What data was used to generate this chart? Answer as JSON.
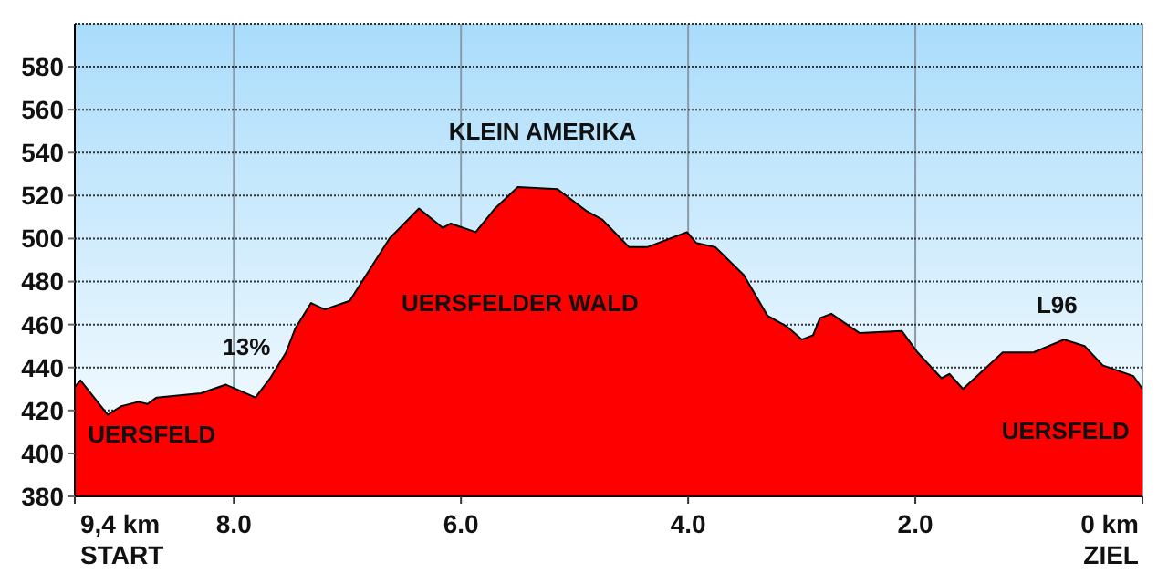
{
  "chart_data": {
    "type": "area",
    "x": [
      9.4,
      9.35,
      9.11,
      8.99,
      8.84,
      8.76,
      8.68,
      8.29,
      8.07,
      7.81,
      7.68,
      7.54,
      7.46,
      7.32,
      7.2,
      6.98,
      6.63,
      6.37,
      6.16,
      6.09,
      5.87,
      5.7,
      5.5,
      5.15,
      4.9,
      4.76,
      4.52,
      4.36,
      4.01,
      3.93,
      3.76,
      3.51,
      3.3,
      3.13,
      3.0,
      2.9,
      2.84,
      2.74,
      2.49,
      2.12,
      1.98,
      1.77,
      1.7,
      1.58,
      1.23,
      0.96,
      0.69,
      0.51,
      0.35,
      0.08,
      0.0
    ],
    "series": [
      {
        "color": "#ff0000",
        "values": [
          431,
          434,
          418,
          422,
          424,
          423,
          426,
          428,
          432,
          426,
          435,
          447,
          458,
          470,
          467,
          471,
          500,
          514,
          505,
          507,
          503,
          514,
          524,
          523,
          513,
          509,
          496,
          496,
          503,
          498,
          496,
          483,
          464,
          459,
          453,
          455,
          463,
          465,
          456,
          457,
          447,
          435,
          437,
          430,
          447,
          447,
          453,
          450,
          441,
          436,
          430
        ]
      }
    ],
    "xlim": [
      9.4,
      0
    ],
    "xticks": [
      {
        "value": 9.4,
        "label": "9,4 km\nSTART"
      },
      {
        "value": 8,
        "label": "8.0"
      },
      {
        "value": 6,
        "label": "6.0"
      },
      {
        "value": 4,
        "label": "4.0"
      },
      {
        "value": 2,
        "label": "2.0"
      },
      {
        "value": 0,
        "label": "0 km\nZIEL"
      }
    ],
    "ylim": [
      380,
      600
    ],
    "yticks": [
      380,
      400,
      420,
      440,
      460,
      480,
      500,
      520,
      540,
      560,
      580
    ],
    "grid": true,
    "annotations": [
      "KLEIN AMERIKA",
      "UERSFELDER WALD",
      "13%",
      "UERSFELD",
      "UERSFELD",
      "L96"
    ]
  }
}
